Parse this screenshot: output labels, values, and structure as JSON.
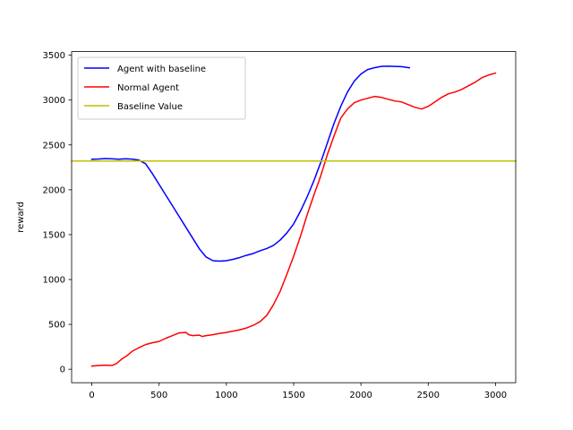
{
  "chart_data": {
    "type": "line",
    "title": "",
    "xlabel": "",
    "ylabel": "reward",
    "xlim": [
      -150,
      3150
    ],
    "ylim": [
      -150,
      3540
    ],
    "x_ticks": [
      0,
      500,
      1000,
      1500,
      2000,
      2500,
      3000
    ],
    "y_ticks": [
      0,
      500,
      1000,
      1500,
      2000,
      2500,
      3000,
      3500
    ],
    "grid": false,
    "legend_position": "top-left",
    "series": [
      {
        "name": "Agent with baseline",
        "color": "#0000ff",
        "x": [
          0,
          50,
          100,
          150,
          200,
          250,
          300,
          350,
          400,
          450,
          500,
          550,
          600,
          650,
          700,
          750,
          800,
          850,
          900,
          950,
          1000,
          1050,
          1100,
          1150,
          1200,
          1250,
          1300,
          1350,
          1400,
          1450,
          1500,
          1550,
          1600,
          1650,
          1700,
          1750,
          1800,
          1850,
          1900,
          1950,
          2000,
          2050,
          2100,
          2150,
          2200,
          2250,
          2300,
          2360
        ],
        "y": [
          2340,
          2343,
          2348,
          2345,
          2340,
          2345,
          2342,
          2330,
          2290,
          2180,
          2060,
          1940,
          1820,
          1700,
          1580,
          1460,
          1340,
          1250,
          1210,
          1205,
          1210,
          1225,
          1245,
          1270,
          1290,
          1320,
          1345,
          1380,
          1440,
          1520,
          1620,
          1760,
          1920,
          2100,
          2300,
          2520,
          2740,
          2930,
          3090,
          3210,
          3290,
          3340,
          3360,
          3375,
          3378,
          3375,
          3372,
          3360
        ]
      },
      {
        "name": "Normal Agent",
        "color": "#ff0000",
        "x": [
          0,
          50,
          100,
          150,
          180,
          220,
          260,
          300,
          350,
          400,
          450,
          500,
          550,
          600,
          650,
          700,
          720,
          750,
          800,
          820,
          850,
          900,
          950,
          1000,
          1050,
          1100,
          1150,
          1200,
          1250,
          1300,
          1350,
          1400,
          1450,
          1500,
          1550,
          1600,
          1650,
          1700,
          1750,
          1800,
          1850,
          1900,
          1950,
          2000,
          2050,
          2100,
          2150,
          2200,
          2250,
          2300,
          2350,
          2400,
          2450,
          2500,
          2550,
          2600,
          2650,
          2700,
          2750,
          2800,
          2850,
          2900,
          2950,
          3000
        ],
        "y": [
          35,
          42,
          45,
          42,
          60,
          110,
          150,
          200,
          240,
          275,
          295,
          310,
          345,
          375,
          405,
          410,
          385,
          375,
          380,
          365,
          375,
          385,
          400,
          410,
          425,
          440,
          460,
          490,
          530,
          600,
          720,
          870,
          1060,
          1260,
          1480,
          1720,
          1940,
          2150,
          2390,
          2600,
          2800,
          2900,
          2970,
          3000,
          3020,
          3040,
          3030,
          3010,
          2990,
          2980,
          2950,
          2920,
          2900,
          2930,
          2980,
          3030,
          3070,
          3090,
          3120,
          3160,
          3200,
          3250,
          3280,
          3300
        ]
      },
      {
        "name": "Baseline Value",
        "color": "#bfbf00",
        "constant_y": 2320
      }
    ]
  }
}
